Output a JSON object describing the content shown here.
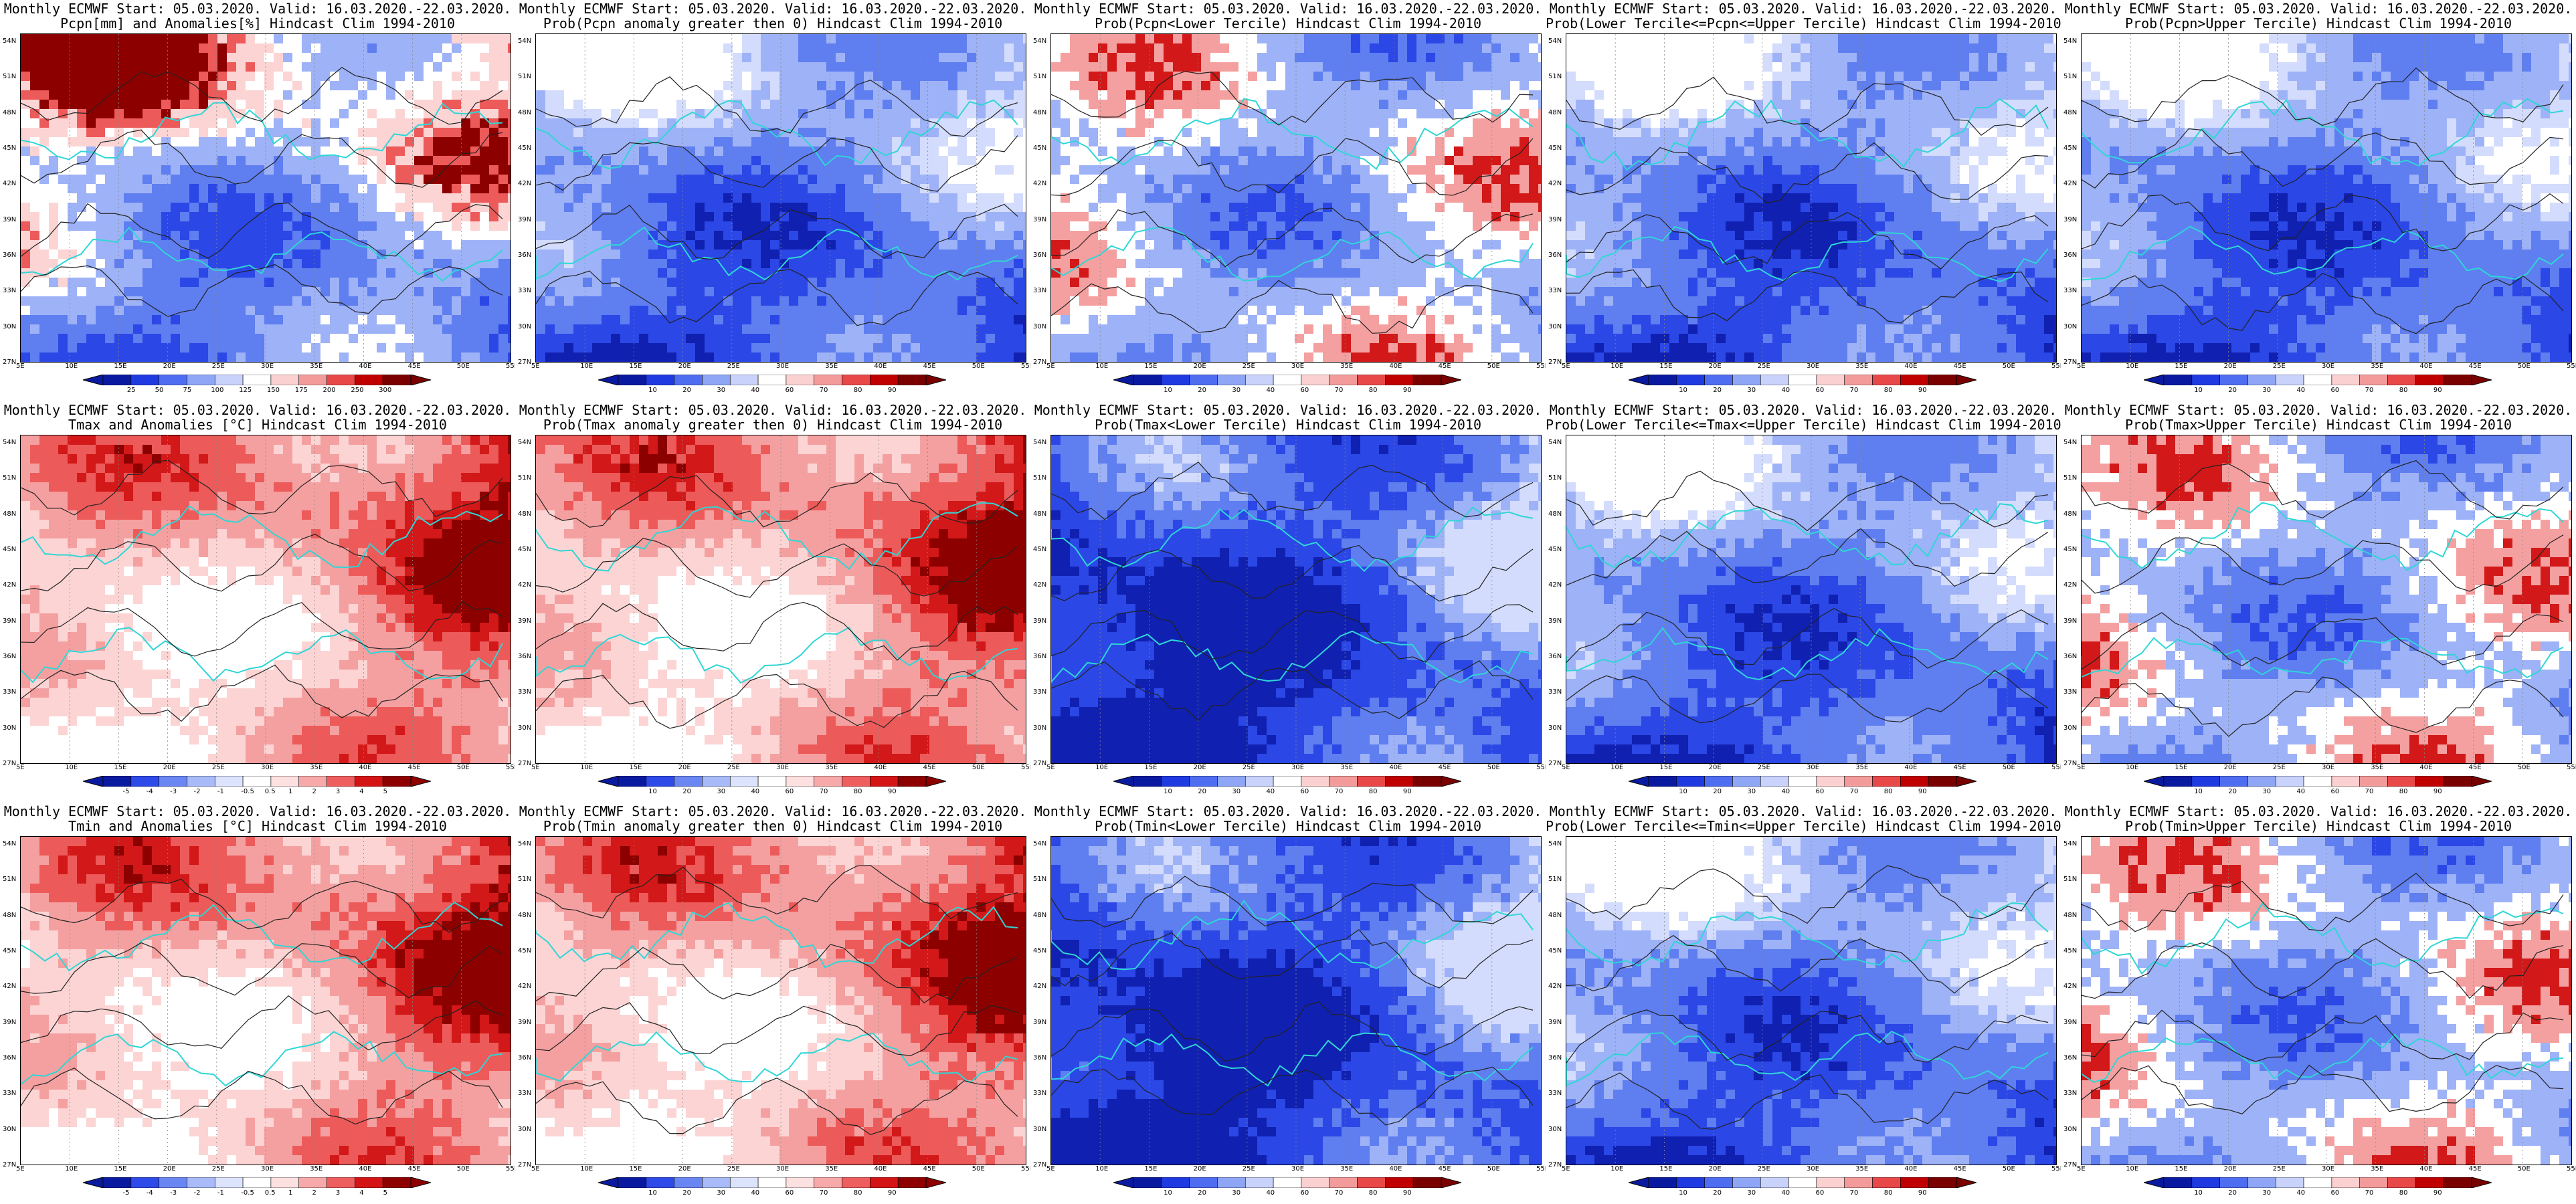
{
  "header_prefix": "Monthly ECMWF",
  "start": "05.03.2020.",
  "valid": "16.03.2020.-22.03.2020.",
  "lat_labels": [
    "54N",
    "51N",
    "48N",
    "45N",
    "42N",
    "39N",
    "36N",
    "33N",
    "30N",
    "27N"
  ],
  "lon_labels": [
    "5E",
    "10E",
    "15E",
    "20E",
    "25E",
    "30E",
    "35E",
    "40E",
    "45E",
    "50E",
    "55E"
  ],
  "palettes": {
    "prob_blue": [
      "#0a1aa0",
      "#1f3ae0",
      "#4f6df0",
      "#8fa6f6",
      "#c8d2fb",
      "#ffffff",
      "#fbd0d0",
      "#f39b9b",
      "#e84848",
      "#c00000",
      "#7a0000"
    ],
    "prob_red": [
      "#0a1aa0",
      "#2e4ae8",
      "#6a86f2",
      "#a8baf8",
      "#dce3fd",
      "#ffffff",
      "#fde0e0",
      "#f7a9a9",
      "#ee5e5e",
      "#d41414",
      "#8e0000"
    ]
  },
  "panels": [
    {
      "title1": "Monthly ECMWF Start: 05.03.2020. Valid: 16.03.2020.-22.03.2020.",
      "title2": "Pcpn[mm] and Anomalies[%] Hindcast Clim 1994-2010",
      "bias": "precip",
      "cbar": [
        "25",
        "50",
        "75",
        "100",
        "125",
        "150",
        "175",
        "200",
        "250",
        "300"
      ]
    },
    {
      "title1": "Monthly ECMWF Start: 05.03.2020. Valid: 16.03.2020.-22.03.2020.",
      "title2": "Prob(Pcpn anomaly greater then 0) Hindcast Clim 1994-2010",
      "bias": "blue",
      "cbar": [
        "10",
        "20",
        "30",
        "40",
        "60",
        "70",
        "80",
        "90"
      ]
    },
    {
      "title1": "Monthly ECMWF Start: 05.03.2020. Valid: 16.03.2020.-22.03.2020.",
      "title2": "Prob(Pcpn<Lower Tercile) Hindcast Clim 1994-2010",
      "bias": "mixed",
      "cbar": [
        "10",
        "20",
        "30",
        "40",
        "60",
        "70",
        "80",
        "90"
      ]
    },
    {
      "title1": "Monthly ECMWF Start: 05.03.2020. Valid: 16.03.2020.-22.03.2020.",
      "title2": "Prob(Lower Tercile<=Pcpn<=Upper Tercile) Hindcast Clim 1994-2010",
      "bias": "blue",
      "cbar": [
        "10",
        "20",
        "30",
        "40",
        "60",
        "70",
        "80",
        "90"
      ]
    },
    {
      "title1": "Monthly ECMWF Start: 05.03.2020. Valid: 16.03.2020.-22.03.2020.",
      "title2": "Prob(Pcpn>Upper Tercile) Hindcast Clim 1994-2010",
      "bias": "blue",
      "cbar": [
        "10",
        "20",
        "30",
        "40",
        "60",
        "70",
        "80",
        "90"
      ]
    },
    {
      "title1": "Monthly ECMWF Start: 05.03.2020. Valid: 16.03.2020.-22.03.2020.",
      "title2": "Tmax and Anomalies [°C] Hindcast Clim 1994-2010",
      "bias": "red",
      "cbar": [
        "-5",
        "-4",
        "-3",
        "-2",
        "-1",
        "-0.5",
        "0.5",
        "1",
        "2",
        "3",
        "4",
        "5"
      ]
    },
    {
      "title1": "Monthly ECMWF Start: 05.03.2020. Valid: 16.03.2020.-22.03.2020.",
      "title2": "Prob(Tmax anomaly greater then 0) Hindcast Clim 1994-2010",
      "bias": "red",
      "cbar": [
        "10",
        "20",
        "30",
        "40",
        "60",
        "70",
        "80",
        "90"
      ]
    },
    {
      "title1": "Monthly ECMWF Start: 05.03.2020. Valid: 16.03.2020.-22.03.2020.",
      "title2": "Prob(Tmax<Lower Tercile) Hindcast Clim 1994-2010",
      "bias": "deepblue",
      "cbar": [
        "10",
        "20",
        "30",
        "40",
        "60",
        "70",
        "80",
        "90"
      ]
    },
    {
      "title1": "Monthly ECMWF Start: 05.03.2020. Valid: 16.03.2020.-22.03.2020.",
      "title2": "Prob(Lower Tercile<=Tmax<=Upper Tercile) Hindcast Clim 1994-2010",
      "bias": "blue",
      "cbar": [
        "10",
        "20",
        "30",
        "40",
        "60",
        "70",
        "80",
        "90"
      ]
    },
    {
      "title1": "Monthly ECMWF Start: 05.03.2020. Valid: 16.03.2020.-22.03.2020.",
      "title2": "Prob(Tmax>Upper Tercile) Hindcast Clim 1994-2010",
      "bias": "mixed",
      "cbar": [
        "10",
        "20",
        "30",
        "40",
        "60",
        "70",
        "80",
        "90"
      ]
    },
    {
      "title1": "Monthly ECMWF Start: 05.03.2020. Valid: 16.03.2020.-22.03.2020.",
      "title2": "Tmin and Anomalies [°C] Hindcast Clim 1994-2010",
      "bias": "red",
      "cbar": [
        "-5",
        "-4",
        "-3",
        "-2",
        "-1",
        "-0.5",
        "0.5",
        "1",
        "2",
        "3",
        "4",
        "5"
      ]
    },
    {
      "title1": "Monthly ECMWF Start: 05.03.2020. Valid: 16.03.2020.-22.03.2020.",
      "title2": "Prob(Tmin anomaly greater then 0) Hindcast Clim 1994-2010",
      "bias": "red",
      "cbar": [
        "10",
        "20",
        "30",
        "40",
        "60",
        "70",
        "80",
        "90"
      ]
    },
    {
      "title1": "Monthly ECMWF Start: 05.03.2020. Valid: 16.03.2020.-22.03.2020.",
      "title2": "Prob(Tmin<Lower Tercile) Hindcast Clim 1994-2010",
      "bias": "deepblue",
      "cbar": [
        "10",
        "20",
        "30",
        "40",
        "60",
        "70",
        "80",
        "90"
      ]
    },
    {
      "title1": "Monthly ECMWF Start: 05.03.2020. Valid: 16.03.2020.-22.03.2020.",
      "title2": "Prob(Lower Tercile<=Tmin<=Upper Tercile) Hindcast Clim 1994-2010",
      "bias": "blue",
      "cbar": [
        "10",
        "20",
        "30",
        "40",
        "60",
        "70",
        "80",
        "90"
      ]
    },
    {
      "title1": "Monthly ECMWF Start: 05.03.2020. Valid: 16.03.2020.-22.03.2020.",
      "title2": "Prob(Tmin>Upper Tercile) Hindcast Clim 1994-2010",
      "bias": "mixed",
      "cbar": [
        "10",
        "20",
        "30",
        "40",
        "60",
        "70",
        "80",
        "90"
      ]
    }
  ]
}
